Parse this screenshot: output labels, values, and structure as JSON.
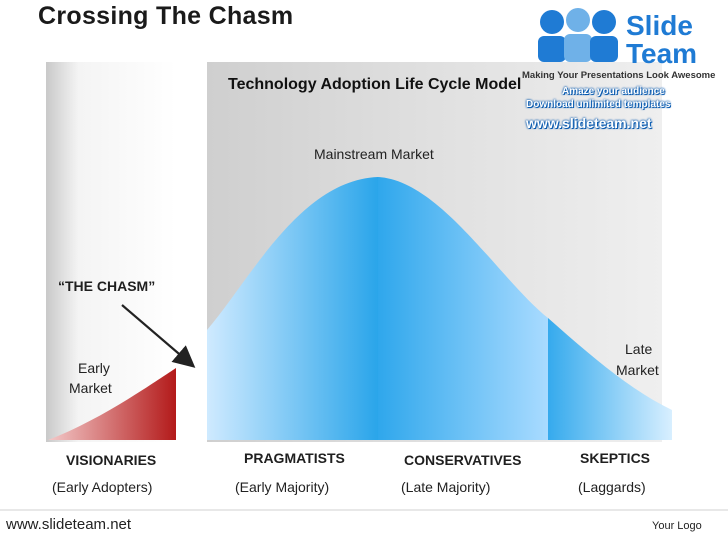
{
  "slide": {
    "title": "Crossing The Chasm",
    "subtitle": "Technology Adoption Life Cycle Model",
    "mainstream_label": "Mainstream Market",
    "chasm_label": "“THE CHASM”",
    "early_market": [
      "Early",
      "Market"
    ],
    "late_market": [
      "Late",
      "Market"
    ]
  },
  "segments": [
    {
      "name": "VISIONARIES",
      "group": "(Early Adopters)"
    },
    {
      "name": "PRAGMATISTS",
      "group": "(Early Majority)"
    },
    {
      "name": "CONSERVATIVES",
      "group": "(Late Majority)"
    },
    {
      "name": "SKEPTICS",
      "group": "(Laggards)"
    }
  ],
  "logo": {
    "name_line1": "Slide",
    "name_line2": "Team",
    "tagline": "Making Your Presentations Look Awesome",
    "promo1": "Amaze your audience",
    "promo2": "Download unlimited templates",
    "url": "www.slideteam.net"
  },
  "footer": {
    "website": "www.slideteam.net",
    "your_logo": "Your Logo"
  },
  "colors": {
    "curve_blue_light": "#cfeaff",
    "curve_blue_dark": "#2aa5ea",
    "early_red": "#b31a1a",
    "panel_gray": "#d9d9d9",
    "brand_blue": "#1f7bd4"
  }
}
